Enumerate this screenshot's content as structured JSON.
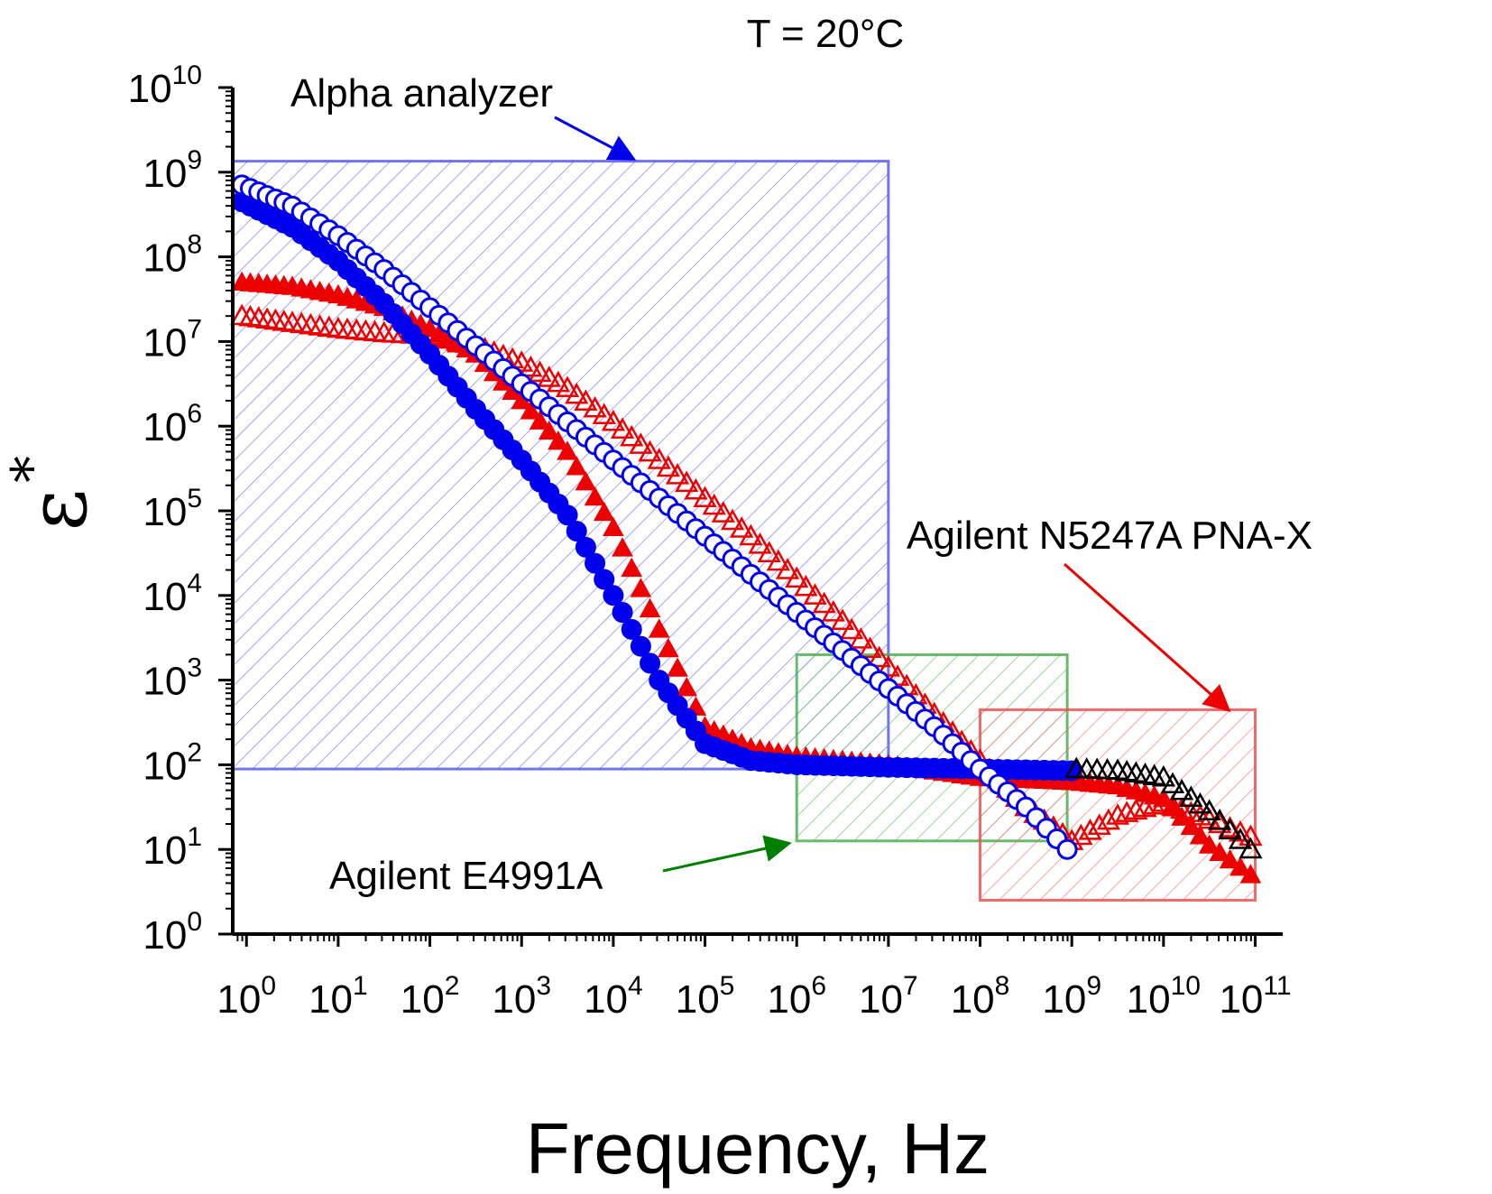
{
  "chart_data": {
    "type": "scatter",
    "title": "T = 20°C",
    "xlabel": "Frequency, Hz",
    "ylabel": "ε",
    "ylabel_sup": "*",
    "xscale": "log",
    "yscale": "log",
    "xlim_log10": [
      -0.15,
      11.3
    ],
    "ylim_log10": [
      0,
      10
    ],
    "x_ticks": [
      {
        "base": "10",
        "exp": "0"
      },
      {
        "base": "10",
        "exp": "1"
      },
      {
        "base": "10",
        "exp": "2"
      },
      {
        "base": "10",
        "exp": "3"
      },
      {
        "base": "10",
        "exp": "4"
      },
      {
        "base": "10",
        "exp": "5"
      },
      {
        "base": "10",
        "exp": "6"
      },
      {
        "base": "10",
        "exp": "7"
      },
      {
        "base": "10",
        "exp": "8"
      },
      {
        "base": "10",
        "exp": "9"
      },
      {
        "base": "10",
        "exp": "10"
      },
      {
        "base": "10",
        "exp": "11"
      }
    ],
    "y_ticks": [
      {
        "base": "10",
        "exp": "0"
      },
      {
        "base": "10",
        "exp": "1"
      },
      {
        "base": "10",
        "exp": "2"
      },
      {
        "base": "10",
        "exp": "3"
      },
      {
        "base": "10",
        "exp": "4"
      },
      {
        "base": "10",
        "exp": "5"
      },
      {
        "base": "10",
        "exp": "6"
      },
      {
        "base": "10",
        "exp": "7"
      },
      {
        "base": "10",
        "exp": "8"
      },
      {
        "base": "10",
        "exp": "9"
      },
      {
        "base": "10",
        "exp": "10"
      }
    ],
    "regions": [
      {
        "name": "Alpha analyzer",
        "x_log10": [
          -0.15,
          7.0
        ],
        "y_log10": [
          1.95,
          9.13
        ],
        "color": "#5a5aee"
      },
      {
        "name": "Agilent E4991A",
        "x_log10": [
          6.0,
          8.95
        ],
        "y_log10": [
          1.1,
          3.3
        ],
        "color": "#4caf50"
      },
      {
        "name": "Agilent N5247A PNA-X",
        "x_log10": [
          8.0,
          11.0
        ],
        "y_log10": [
          0.4,
          2.65
        ],
        "color": "#f05050"
      }
    ],
    "annotations": [
      {
        "text": "Alpha analyzer",
        "color": "#0000ee"
      },
      {
        "text": "Agilent E4991A",
        "color": "#008000"
      },
      {
        "text": "Agilent N5247A PNA-X",
        "color": "#ee0000"
      }
    ],
    "series": [
      {
        "name": "blue open circles",
        "marker": "circle-open",
        "color": "#0000ee",
        "points_log10": [
          [
            -0.05,
            8.85
          ],
          [
            0.5,
            8.6
          ],
          [
            1.0,
            8.25
          ],
          [
            1.5,
            7.85
          ],
          [
            2.0,
            7.4
          ],
          [
            2.5,
            6.95
          ],
          [
            3.0,
            6.5
          ],
          [
            3.5,
            6.05
          ],
          [
            4.0,
            5.6
          ],
          [
            4.5,
            5.15
          ],
          [
            5.0,
            4.7
          ],
          [
            5.5,
            4.25
          ],
          [
            6.0,
            3.8
          ],
          [
            6.5,
            3.35
          ],
          [
            7.0,
            2.9
          ],
          [
            7.5,
            2.45
          ],
          [
            8.0,
            1.95
          ],
          [
            8.5,
            1.5
          ],
          [
            8.95,
            1.0
          ]
        ]
      },
      {
        "name": "blue filled circles",
        "marker": "circle-filled",
        "color": "#0000ee",
        "points_log10": [
          [
            -0.05,
            8.65
          ],
          [
            0.5,
            8.35
          ],
          [
            1.0,
            7.95
          ],
          [
            1.5,
            7.45
          ],
          [
            2.0,
            6.85
          ],
          [
            2.5,
            6.2
          ],
          [
            3.0,
            5.6
          ],
          [
            3.5,
            4.95
          ],
          [
            4.0,
            4.0
          ],
          [
            4.5,
            3.0
          ],
          [
            5.0,
            2.25
          ],
          [
            5.5,
            2.05
          ],
          [
            6.0,
            2.0
          ],
          [
            7.0,
            1.97
          ],
          [
            8.0,
            1.95
          ],
          [
            9.0,
            1.93
          ]
        ]
      },
      {
        "name": "red open triangles",
        "marker": "triangle-open",
        "color": "#ee0000",
        "points_log10": [
          [
            -0.05,
            7.3
          ],
          [
            0.5,
            7.22
          ],
          [
            1.0,
            7.15
          ],
          [
            1.5,
            7.1
          ],
          [
            2.0,
            7.07
          ],
          [
            2.5,
            6.95
          ],
          [
            3.0,
            6.75
          ],
          [
            3.5,
            6.45
          ],
          [
            4.0,
            6.05
          ],
          [
            4.5,
            5.6
          ],
          [
            5.0,
            5.15
          ],
          [
            5.5,
            4.7
          ],
          [
            6.0,
            4.2
          ],
          [
            6.5,
            3.7
          ],
          [
            7.0,
            3.15
          ],
          [
            7.5,
            2.6
          ],
          [
            8.0,
            2.05
          ],
          [
            8.5,
            1.5
          ],
          [
            9.0,
            1.1
          ],
          [
            9.5,
            1.4
          ],
          [
            10.0,
            1.55
          ],
          [
            10.5,
            1.35
          ],
          [
            10.95,
            1.15
          ]
        ]
      },
      {
        "name": "red filled triangles",
        "marker": "triangle-filled",
        "color": "#ee0000",
        "points_log10": [
          [
            -0.05,
            7.7
          ],
          [
            0.5,
            7.65
          ],
          [
            1.0,
            7.55
          ],
          [
            1.5,
            7.4
          ],
          [
            2.0,
            7.15
          ],
          [
            2.5,
            6.85
          ],
          [
            3.0,
            6.3
          ],
          [
            3.5,
            5.7
          ],
          [
            4.0,
            4.8
          ],
          [
            4.5,
            3.6
          ],
          [
            5.0,
            2.45
          ],
          [
            5.5,
            2.2
          ],
          [
            6.0,
            2.1
          ],
          [
            7.0,
            2.0
          ],
          [
            8.0,
            1.85
          ],
          [
            9.0,
            1.8
          ],
          [
            9.5,
            1.75
          ],
          [
            10.0,
            1.6
          ],
          [
            10.5,
            1.05
          ],
          [
            10.95,
            0.7
          ]
        ]
      },
      {
        "name": "black open triangles",
        "marker": "triangle-open",
        "color": "#000000",
        "points_log10": [
          [
            9.05,
            1.95
          ],
          [
            9.5,
            1.93
          ],
          [
            10.0,
            1.85
          ],
          [
            10.5,
            1.45
          ],
          [
            10.95,
            1.0
          ]
        ]
      }
    ]
  }
}
